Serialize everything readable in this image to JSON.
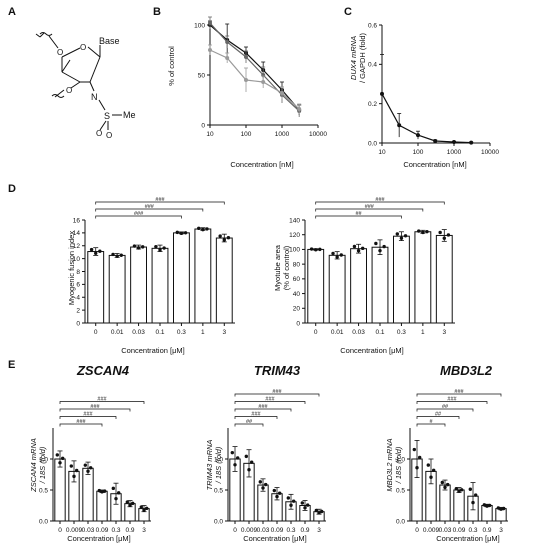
{
  "panels": {
    "A": "A",
    "B": "B",
    "C": "C",
    "D": "D",
    "E": "E"
  },
  "structure": {
    "base_label": "Base",
    "n_label": "N",
    "s_label": "S",
    "me_label": "Me",
    "o1_label": "O",
    "o2_label": "O",
    "o3_label": "O",
    "ring_o_label": "O"
  },
  "chart_data": [
    {
      "id": "B",
      "type": "line",
      "xscale": "log",
      "xlim": [
        10,
        10000
      ],
      "ylim": [
        0,
        100
      ],
      "xticks": [
        "10",
        "100",
        "1000",
        "10000"
      ],
      "yticks": [
        "0",
        "50",
        "100"
      ],
      "xlabel": "Concentration [nM]",
      "ylabel": "% of control",
      "x": [
        10,
        30,
        100,
        300,
        1000,
        3000
      ],
      "series": [
        {
          "values": [
            100,
            85,
            72,
            55,
            35,
            15
          ],
          "err": [
            4,
            16,
            6,
            8,
            8,
            5
          ],
          "color": "#111111"
        },
        {
          "values": [
            102,
            83,
            68,
            50,
            30,
            14
          ],
          "err": [
            6,
            6,
            6,
            8,
            8,
            6
          ],
          "color": "#666666"
        },
        {
          "values": [
            75,
            67,
            45,
            43,
            32,
            16
          ],
          "err": [
            5,
            5,
            12,
            6,
            6,
            5
          ],
          "color": "#9a9a9a"
        }
      ]
    },
    {
      "id": "C",
      "type": "line",
      "xscale": "log",
      "xlim": [
        10,
        10000
      ],
      "ylim": [
        0,
        0.6
      ],
      "xticks": [
        "10",
        "100",
        "1000",
        "10000"
      ],
      "yticks": [
        "0.0",
        "0.2",
        "0.4",
        "0.6"
      ],
      "xlabel": "Concentration [nM]",
      "ylabel_1": "DUX4 mRNA",
      "ylabel_2": "/ GAPDH (fold)",
      "x": [
        10,
        30,
        100,
        300,
        1000,
        3000
      ],
      "values": [
        0.25,
        0.09,
        0.04,
        0.01,
        0.005,
        0.002
      ],
      "err": [
        0.2,
        0.06,
        0.02,
        0.006,
        0.003,
        0.002
      ]
    },
    {
      "id": "D1",
      "type": "bar",
      "categories": [
        "0",
        "0.01",
        "0.03",
        "0.1",
        "0.3",
        "1",
        "3"
      ],
      "values": [
        11.1,
        10.5,
        11.8,
        11.6,
        14.0,
        14.6,
        13.2
      ],
      "err": [
        0.6,
        0.3,
        0.3,
        0.5,
        0.15,
        0.2,
        0.6
      ],
      "ylim": [
        0,
        16
      ],
      "yticks": [
        "0",
        "2",
        "4",
        "6",
        "8",
        "10",
        "12",
        "14",
        "16"
      ],
      "xlabel": "Concentration [μM]",
      "ylabel": "Myogenic fusion index",
      "brackets": [
        {
          "to": 6,
          "label": "###"
        },
        {
          "to": 5,
          "label": "###"
        },
        {
          "to": 4,
          "label": "###"
        }
      ]
    },
    {
      "id": "D2",
      "type": "bar",
      "categories": [
        "0",
        "0.01",
        "0.03",
        "0.1",
        "0.3",
        "1",
        "3"
      ],
      "values": [
        100,
        92,
        101,
        103,
        118,
        124,
        119
      ],
      "err": [
        1,
        5,
        6,
        10,
        6,
        2,
        8
      ],
      "ylim": [
        0,
        140
      ],
      "yticks": [
        "0",
        "20",
        "40",
        "60",
        "80",
        "100",
        "120",
        "140"
      ],
      "xlabel": "Concentration [μM]",
      "ylabel_1": "Myotube area",
      "ylabel_2": "(% of control)",
      "brackets": [
        {
          "to": 6,
          "label": "###"
        },
        {
          "to": 5,
          "label": "###"
        },
        {
          "to": 4,
          "label": "##"
        }
      ]
    },
    {
      "id": "E1",
      "type": "bar",
      "title": "ZSCAN4",
      "categories": [
        "0",
        "0.009",
        "0.03",
        "0.09",
        "0.3",
        "0.9",
        "3"
      ],
      "values": [
        1.0,
        0.8,
        0.85,
        0.48,
        0.44,
        0.28,
        0.2
      ],
      "err": [
        0.13,
        0.17,
        0.1,
        0.02,
        0.17,
        0.05,
        0.05
      ],
      "ylim": [
        0,
        1.5
      ],
      "yticks": [
        "0.0",
        "0.5",
        "1.0"
      ],
      "xlabel": "Concentration [μM]",
      "ylabel_1": "ZSCAN4 mRNA",
      "ylabel_2": "/ 18S (fold)",
      "brackets": [
        {
          "to": 6,
          "label": "###"
        },
        {
          "to": 5,
          "label": "###"
        },
        {
          "to": 4,
          "label": "###"
        },
        {
          "to": 3,
          "label": "###"
        }
      ]
    },
    {
      "id": "E2",
      "type": "bar",
      "title": "TRIM43",
      "categories": [
        "0",
        "0.009",
        "0.03",
        "0.09",
        "0.3",
        "0.9",
        "3"
      ],
      "values": [
        1.0,
        0.93,
        0.58,
        0.44,
        0.31,
        0.25,
        0.15
      ],
      "err": [
        0.2,
        0.22,
        0.1,
        0.1,
        0.12,
        0.08,
        0.04
      ],
      "ylim": [
        0,
        1.5
      ],
      "yticks": [
        "0.0",
        "0.5",
        "1.0"
      ],
      "xlabel": "Concentration [μM]",
      "ylabel_1": "TRIM43 mRNA",
      "ylabel_2": "/ 18S (fold)",
      "brackets": [
        {
          "to": 6,
          "label": "###"
        },
        {
          "to": 5,
          "label": "###"
        },
        {
          "to": 4,
          "label": "###"
        },
        {
          "to": 3,
          "label": "###"
        },
        {
          "to": 2,
          "label": "##"
        }
      ]
    },
    {
      "id": "E3",
      "type": "bar",
      "title": "MBD3L2",
      "categories": [
        "0",
        "0.009",
        "0.03",
        "0.09",
        "0.3",
        "0.9",
        "3"
      ],
      "values": [
        1.0,
        0.8,
        0.58,
        0.5,
        0.4,
        0.25,
        0.2
      ],
      "err": [
        0.3,
        0.2,
        0.08,
        0.04,
        0.22,
        0.02,
        0.02
      ],
      "ylim": [
        0,
        1.5
      ],
      "yticks": [
        "0.0",
        "0.5",
        "1.0"
      ],
      "xlabel": "Concentration [μM]",
      "ylabel_1": "MBD3L2 mRNA",
      "ylabel_2": "/ 18S (fold)",
      "brackets": [
        {
          "to": 6,
          "label": "###"
        },
        {
          "to": 5,
          "label": "###"
        },
        {
          "to": 4,
          "label": "##"
        },
        {
          "to": 3,
          "label": "##"
        },
        {
          "to": 2,
          "label": "#"
        }
      ]
    }
  ]
}
